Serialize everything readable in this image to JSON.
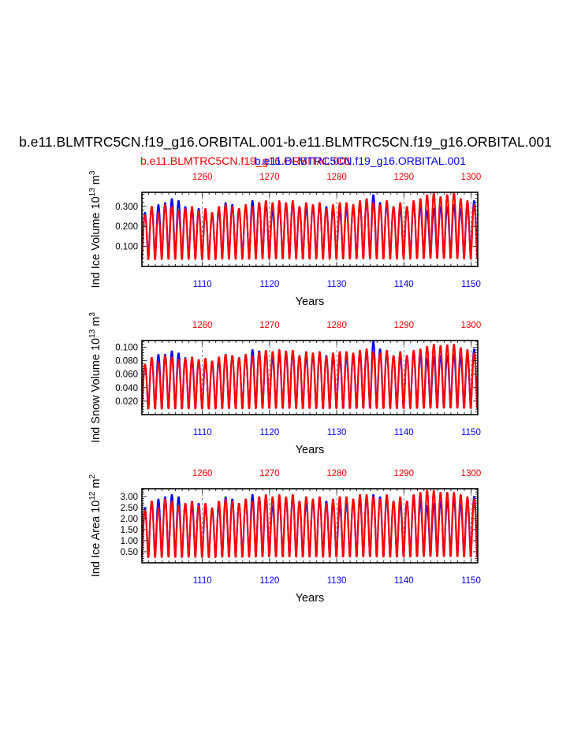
{
  "figure": {
    "title": "b.e11.BLMTRC5CN.f19_g16.ORBITAL.001-b.e11.BLMTRC5CN.f19_g16.ORBITAL.001",
    "subtitle_red": "b.e11.BLMTRC5CN.f19_g16.ORBITAL.001",
    "subtitle_blue": "b.e11.BLMTRC5CN.f19_g16.ORBITAL.001"
  },
  "colors": {
    "series_a": "#0000ff",
    "series_b": "#ff0000",
    "axis": "#000000",
    "gridline": "#555555"
  },
  "chart_data": [
    {
      "type": "line",
      "ylabel": "Ind Ice Volume 10",
      "ylabel_exp": "13",
      "ylabel_unit": " m",
      "ylabel_unit_exp": "3",
      "xlabel": "Years",
      "bottom_axis": {
        "xlim": [
          1101,
          1151
        ],
        "ticks": [
          1110,
          1120,
          1130,
          1140,
          1150
        ],
        "tick_labels": [
          "1110",
          "1120",
          "1130",
          "1140",
          "1150"
        ]
      },
      "top_axis": {
        "xlim": [
          1251,
          1301
        ],
        "ticks": [
          1260,
          1270,
          1280,
          1290,
          1300
        ],
        "tick_labels": [
          "1260",
          "1270",
          "1280",
          "1290",
          "1300"
        ]
      },
      "ylim": [
        0.0,
        0.37
      ],
      "yticks": [
        0.1,
        0.2,
        0.3
      ],
      "ytick_labels": [
        "0.100",
        "0.200",
        "0.300"
      ],
      "series": [
        {
          "name": "blue (years 1101-1151)",
          "min": 0.03,
          "annual_max": [
            0.27,
            0.3,
            0.31,
            0.32,
            0.34,
            0.33,
            0.3,
            0.28,
            0.29,
            0.27,
            0.26,
            0.28,
            0.32,
            0.31,
            0.29,
            0.3,
            0.33,
            0.32,
            0.31,
            0.28,
            0.3,
            0.31,
            0.32,
            0.3,
            0.29,
            0.3,
            0.31,
            0.3,
            0.29,
            0.28,
            0.29,
            0.3,
            0.31,
            0.33,
            0.36,
            0.32,
            0.31,
            0.3,
            0.29,
            0.3,
            0.31,
            0.3,
            0.28,
            0.29,
            0.3,
            0.3,
            0.31,
            0.29,
            0.3,
            0.33,
            0.29
          ]
        },
        {
          "name": "red (years 1251-1301)",
          "min": 0.02,
          "annual_max": [
            0.26,
            0.3,
            0.27,
            0.31,
            0.3,
            0.28,
            0.29,
            0.3,
            0.28,
            0.29,
            0.27,
            0.3,
            0.31,
            0.3,
            0.29,
            0.31,
            0.3,
            0.32,
            0.33,
            0.32,
            0.33,
            0.32,
            0.33,
            0.3,
            0.32,
            0.31,
            0.32,
            0.29,
            0.31,
            0.32,
            0.32,
            0.31,
            0.33,
            0.34,
            0.32,
            0.31,
            0.33,
            0.3,
            0.32,
            0.3,
            0.33,
            0.34,
            0.36,
            0.37,
            0.35,
            0.36,
            0.37,
            0.34,
            0.33,
            0.31,
            0.3
          ]
        }
      ]
    },
    {
      "type": "line",
      "ylabel": "Ind Snow Volume 10",
      "ylabel_exp": "13",
      "ylabel_unit": " m",
      "ylabel_unit_exp": "3",
      "xlabel": "Years",
      "bottom_axis": {
        "xlim": [
          1101,
          1151
        ],
        "ticks": [
          1110,
          1120,
          1130,
          1140,
          1150
        ],
        "tick_labels": [
          "1110",
          "1120",
          "1130",
          "1140",
          "1150"
        ]
      },
      "top_axis": {
        "xlim": [
          1251,
          1301
        ],
        "ticks": [
          1260,
          1270,
          1280,
          1290,
          1300
        ],
        "tick_labels": [
          "1260",
          "1270",
          "1280",
          "1290",
          "1300"
        ]
      },
      "ylim": [
        0.0,
        0.11
      ],
      "yticks": [
        0.02,
        0.04,
        0.06,
        0.08,
        0.1
      ],
      "ytick_labels": [
        "0.020",
        "0.040",
        "0.060",
        "0.080",
        "0.100"
      ],
      "series": [
        {
          "name": "blue (years 1101-1151)",
          "min": 0.005,
          "annual_max": [
            0.075,
            0.085,
            0.09,
            0.09,
            0.095,
            0.092,
            0.085,
            0.08,
            0.082,
            0.078,
            0.076,
            0.08,
            0.09,
            0.088,
            0.085,
            0.088,
            0.097,
            0.095,
            0.092,
            0.085,
            0.088,
            0.09,
            0.092,
            0.088,
            0.086,
            0.088,
            0.09,
            0.088,
            0.086,
            0.084,
            0.086,
            0.088,
            0.09,
            0.095,
            0.11,
            0.098,
            0.092,
            0.088,
            0.086,
            0.088,
            0.09,
            0.088,
            0.084,
            0.086,
            0.088,
            0.088,
            0.09,
            0.086,
            0.088,
            0.098,
            0.085
          ]
        },
        {
          "name": "red (years 1251-1301)",
          "min": 0.004,
          "annual_max": [
            0.075,
            0.085,
            0.078,
            0.088,
            0.086,
            0.082,
            0.084,
            0.086,
            0.082,
            0.084,
            0.08,
            0.086,
            0.09,
            0.088,
            0.085,
            0.09,
            0.088,
            0.093,
            0.096,
            0.094,
            0.097,
            0.095,
            0.096,
            0.088,
            0.094,
            0.092,
            0.094,
            0.086,
            0.092,
            0.094,
            0.094,
            0.092,
            0.096,
            0.098,
            0.094,
            0.092,
            0.096,
            0.088,
            0.094,
            0.088,
            0.096,
            0.098,
            0.102,
            0.105,
            0.103,
            0.104,
            0.105,
            0.1,
            0.097,
            0.092,
            0.088
          ]
        }
      ]
    },
    {
      "type": "line",
      "ylabel": "Ind Ice Area 10",
      "ylabel_exp": "12",
      "ylabel_unit": " m",
      "ylabel_unit_exp": "2",
      "xlabel": "Years",
      "bottom_axis": {
        "xlim": [
          1101,
          1151
        ],
        "ticks": [
          1110,
          1120,
          1130,
          1140,
          1150
        ],
        "tick_labels": [
          "1110",
          "1120",
          "1130",
          "1140",
          "1150"
        ]
      },
      "top_axis": {
        "xlim": [
          1251,
          1301
        ],
        "ticks": [
          1260,
          1270,
          1280,
          1290,
          1300
        ],
        "tick_labels": [
          "1260",
          "1270",
          "1280",
          "1290",
          "1300"
        ]
      },
      "ylim": [
        0.0,
        3.35
      ],
      "yticks": [
        0.5,
        1.0,
        1.5,
        2.0,
        2.5,
        3.0
      ],
      "ytick_labels": [
        "0.50",
        "1.00",
        "1.50",
        "2.00",
        "2.50",
        "3.00"
      ],
      "series": [
        {
          "name": "blue (years 1101-1151)",
          "min": 0.15,
          "annual_max": [
            2.5,
            2.8,
            2.9,
            3.0,
            3.1,
            3.0,
            2.7,
            2.6,
            2.7,
            2.5,
            2.4,
            2.6,
            3.0,
            2.9,
            2.7,
            2.8,
            3.1,
            3.0,
            2.9,
            2.6,
            2.8,
            2.9,
            3.0,
            2.8,
            2.7,
            2.8,
            2.9,
            2.8,
            2.7,
            2.6,
            2.7,
            2.8,
            2.9,
            3.0,
            3.1,
            3.0,
            2.9,
            2.8,
            2.7,
            2.8,
            2.9,
            2.8,
            2.6,
            2.7,
            2.8,
            2.8,
            2.9,
            2.7,
            2.8,
            3.0,
            2.7
          ]
        },
        {
          "name": "red (years 1251-1301)",
          "min": 0.1,
          "annual_max": [
            2.4,
            2.8,
            2.5,
            2.9,
            2.8,
            2.6,
            2.7,
            2.8,
            2.6,
            2.7,
            2.5,
            2.8,
            2.9,
            2.8,
            2.7,
            2.9,
            2.8,
            3.0,
            3.1,
            3.0,
            3.1,
            3.0,
            3.1,
            2.8,
            3.0,
            2.9,
            3.0,
            2.7,
            2.9,
            3.0,
            3.0,
            2.9,
            3.1,
            3.1,
            3.0,
            2.9,
            3.1,
            2.8,
            3.0,
            2.8,
            3.1,
            3.2,
            3.3,
            3.3,
            3.2,
            3.2,
            3.2,
            3.1,
            3.0,
            2.9,
            2.8
          ]
        }
      ]
    }
  ]
}
